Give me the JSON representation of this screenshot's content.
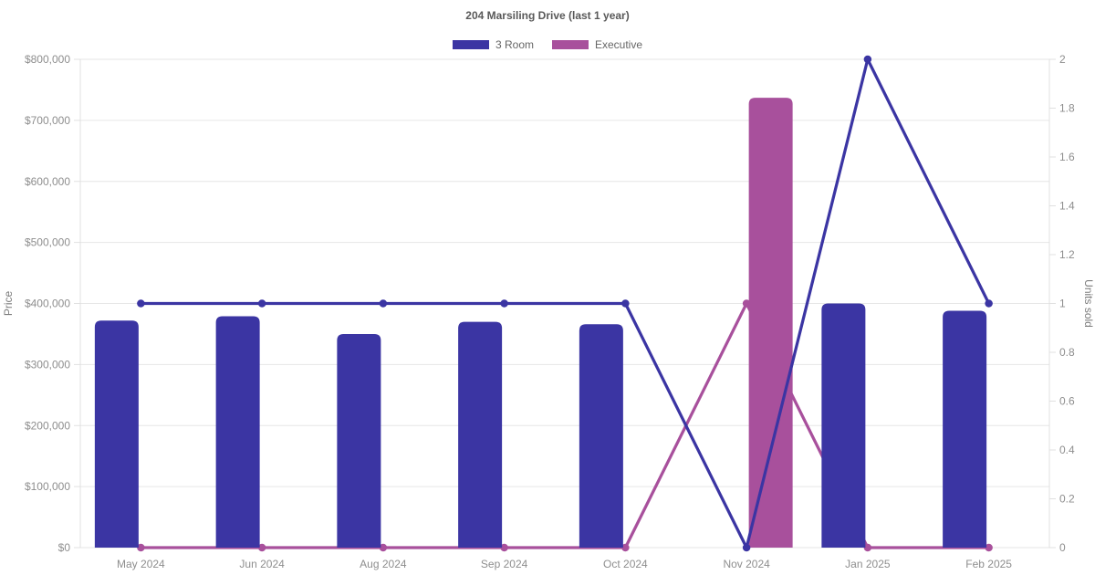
{
  "chart_data": {
    "type": "combo-bar-line",
    "title": "204 Marsiling Drive (last 1 year)",
    "categories": [
      "May 2024",
      "Jun 2024",
      "Aug 2024",
      "Sep 2024",
      "Oct 2024",
      "Nov 2024",
      "Jan 2025",
      "Feb 2025"
    ],
    "legend": [
      {
        "label": "3 Room",
        "color": "#3b35a3"
      },
      {
        "label": "Executive",
        "color": "#a8509c"
      }
    ],
    "bar_series": [
      {
        "name": "3 Room",
        "color": "#3b35a3",
        "axis": "left",
        "values": [
          372000,
          379000,
          350000,
          370000,
          366000,
          null,
          400000,
          388000
        ]
      },
      {
        "name": "Executive",
        "color": "#a8509c",
        "axis": "left",
        "values": [
          null,
          null,
          null,
          null,
          null,
          737000,
          null,
          null
        ]
      }
    ],
    "line_series": [
      {
        "name": "3 Room",
        "color": "#3b35a3",
        "axis": "right",
        "values": [
          1,
          1,
          1,
          1,
          1,
          0,
          2,
          1
        ]
      },
      {
        "name": "Executive",
        "color": "#a8509c",
        "axis": "right",
        "values": [
          0,
          0,
          0,
          0,
          0,
          1,
          0,
          0
        ]
      }
    ],
    "left_axis": {
      "label": "Price",
      "min": 0,
      "max": 800000,
      "tick_labels": [
        "$0",
        "$100,000",
        "$200,000",
        "$300,000",
        "$400,000",
        "$500,000",
        "$600,000",
        "$700,000",
        "$800,000"
      ]
    },
    "right_axis": {
      "label": "Units sold",
      "min": 0,
      "max": 2,
      "tick_labels": [
        "0",
        "0.2",
        "0.4",
        "0.6",
        "0.8",
        "1",
        "1.2",
        "1.4",
        "1.6",
        "1.8",
        "2"
      ]
    },
    "grid": "horizontal",
    "colors": {
      "gridline": "#e6e6e6",
      "axis_line": "#e0e0e0",
      "tick_label": "#8e8e8e",
      "title_text": "#595959",
      "legend_text": "#666666",
      "background": "#ffffff"
    }
  }
}
